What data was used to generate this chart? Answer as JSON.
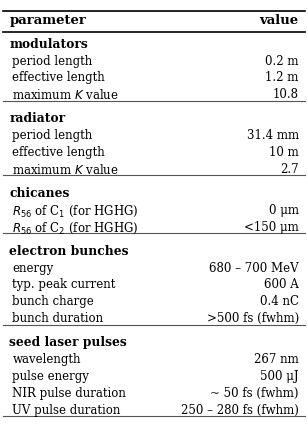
{
  "header": [
    "parameter",
    "value"
  ],
  "sections": [
    {
      "title": "modulators",
      "rows": [
        [
          "    period length",
          "0.2 m"
        ],
        [
          "    effective length",
          "1.2 m"
        ],
        [
          "    maximum $K$ value",
          "10.8"
        ]
      ]
    },
    {
      "title": "radiator",
      "rows": [
        [
          "    period length",
          "31.4 mm"
        ],
        [
          "    effective length",
          "10 m"
        ],
        [
          "    maximum $K$ value",
          "2.7"
        ]
      ]
    },
    {
      "title": "chicanes",
      "rows": [
        [
          "    $R_{56}$ of C$_1$ (for HGHG)",
          "0 μm"
        ],
        [
          "    $R_{56}$ of C$_2$ (for HGHG)",
          "<150 μm"
        ]
      ]
    },
    {
      "title": "electron bunches",
      "rows": [
        [
          "    energy",
          "680 – 700 MeV"
        ],
        [
          "    typ. peak current",
          "600 A"
        ],
        [
          "    bunch charge",
          "0.4 nC"
        ],
        [
          "    bunch duration",
          ">500 fs (fwhm)"
        ]
      ]
    },
    {
      "title": "seed laser pulses",
      "rows": [
        [
          "    wavelength",
          "267 nm"
        ],
        [
          "    pulse energy",
          "500 μJ"
        ],
        [
          "    NIR pulse duration",
          "~ 50 fs (fwhm)"
        ],
        [
          "    UV pulse duration",
          "250 – 280 fs (fwhm)"
        ]
      ]
    }
  ],
  "bg_color": "#ffffff",
  "text_color": "#000000",
  "font_size": 8.5,
  "header_font_size": 9.5
}
